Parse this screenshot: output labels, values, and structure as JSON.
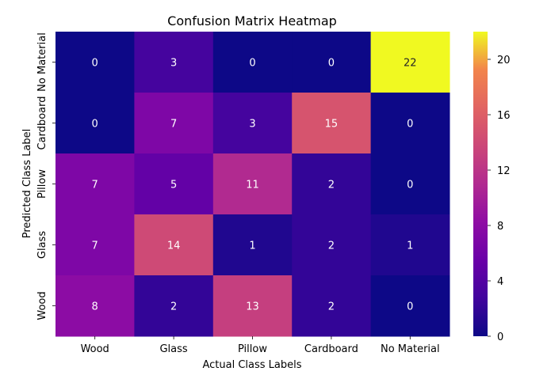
{
  "chart_data": {
    "type": "heatmap",
    "title": "Confusion Matrix Heatmap",
    "xlabel": "Actual Class Labels",
    "ylabel": "Predicted Class Label",
    "x_categories": [
      "Wood",
      "Glass",
      "Pillow",
      "Cardboard",
      "No Material"
    ],
    "y_categories": [
      "No Material",
      "Cardboard",
      "Pillow",
      "Glass",
      "Wood"
    ],
    "values": [
      [
        0,
        3,
        0,
        0,
        22
      ],
      [
        0,
        7,
        3,
        15,
        0
      ],
      [
        7,
        5,
        11,
        2,
        0
      ],
      [
        7,
        14,
        1,
        2,
        1
      ],
      [
        8,
        2,
        13,
        2,
        0
      ]
    ],
    "colorscale": "plasma",
    "vmin": 0,
    "vmax": 22,
    "colorbar_ticks": [
      0,
      4,
      8,
      12,
      16,
      20
    ]
  }
}
